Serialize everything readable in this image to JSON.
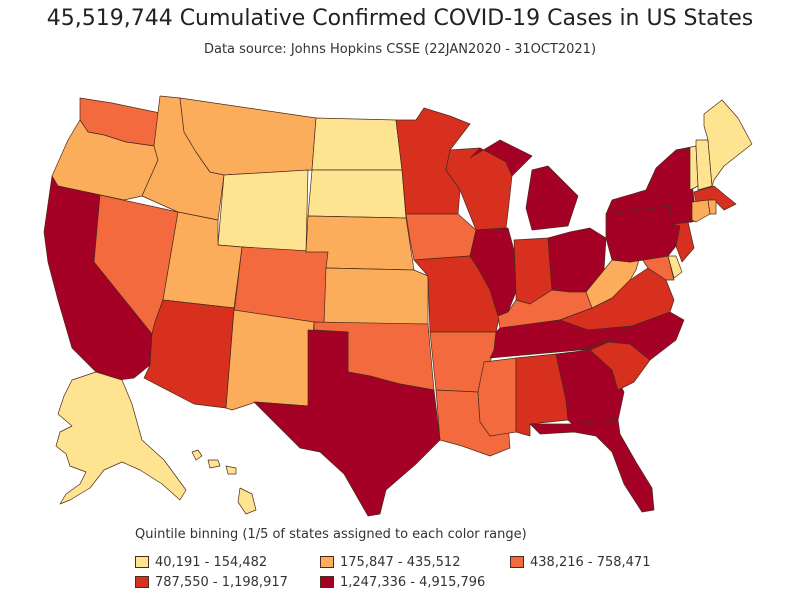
{
  "title": "45,519,744 Cumulative Confirmed COVID-19 Cases in US States",
  "subtitle": "Data source: Johns Hopkins CSSE (22JAN2020 - 31OCT2021)",
  "legend": {
    "title": "Quintile binning (1/5 of states assigned to each color range)",
    "items": [
      {
        "label": "40,191 - 154,482",
        "color": "#fee391"
      },
      {
        "label": "175,847 - 435,512",
        "color": "#fcad5c"
      },
      {
        "label": "438,216 - 758,471",
        "color": "#f26a3d"
      },
      {
        "label": "787,550 - 1,198,917",
        "color": "#d7301f"
      },
      {
        "label": "1,247,336 - 4,915,796",
        "color": "#a50026"
      }
    ]
  },
  "state_bins": {
    "WA": 3,
    "OR": 2,
    "CA": 5,
    "NV": 3,
    "ID": 2,
    "MT": 2,
    "WY": 1,
    "UT": 2,
    "AZ": 4,
    "CO": 3,
    "NM": 2,
    "ND": 1,
    "SD": 1,
    "NE": 2,
    "KS": 2,
    "OK": 3,
    "TX": 5,
    "MN": 4,
    "IA": 3,
    "MO": 4,
    "AR": 3,
    "LA": 3,
    "WI": 4,
    "IL": 5,
    "MI": 5,
    "IN": 4,
    "OH": 5,
    "KY": 3,
    "TN": 5,
    "MS": 3,
    "AL": 4,
    "GA": 5,
    "FL": 5,
    "SC": 4,
    "NC": 5,
    "VA": 4,
    "WV": 2,
    "PA": 5,
    "NY": 5,
    "NJ": 4,
    "DE": 1,
    "MD": 3,
    "CT": 2,
    "RI": 2,
    "MA": 4,
    "VT": 1,
    "NH": 1,
    "ME": 1,
    "AK": 1,
    "HI": 1,
    "DC": 1
  }
}
